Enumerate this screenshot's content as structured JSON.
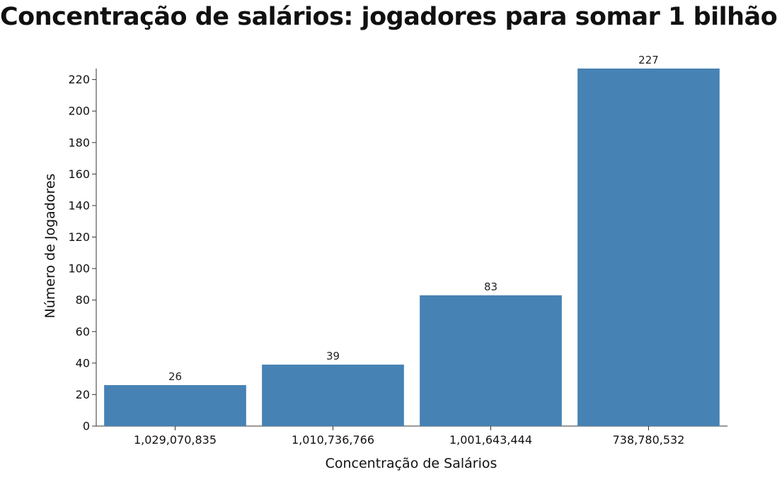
{
  "chart_data": {
    "type": "bar",
    "title": "Concentração de salários: jogadores para somar 1 bilhão",
    "xlabel": "Concentração de Salários",
    "ylabel": "Número de Jogadores",
    "categories": [
      "1,029,070,835",
      "1,010,736,766",
      "1,001,643,444",
      "738,780,532"
    ],
    "values": [
      26,
      39,
      83,
      227
    ],
    "ylim": [
      0,
      227
    ],
    "yticks": [
      0,
      20,
      40,
      60,
      80,
      100,
      120,
      140,
      160,
      180,
      200,
      220
    ],
    "bar_color": "#4682b4",
    "grid": false
  }
}
